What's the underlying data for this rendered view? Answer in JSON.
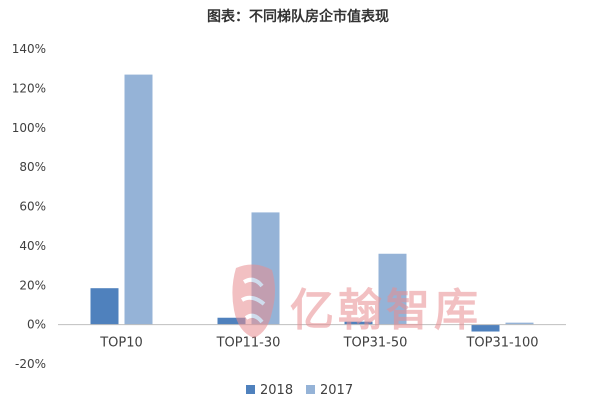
{
  "chart_data": {
    "type": "bar",
    "title": "图表：不同梯队房企市值表现",
    "categories": [
      "TOP10",
      "TOP11-30",
      "TOP31-50",
      "TOP31-100"
    ],
    "series": [
      {
        "name": "2018",
        "color": "#4f81bd",
        "values": [
          18.5,
          3.5,
          1.5,
          -3.5
        ]
      },
      {
        "name": "2017",
        "color": "#95b3d7",
        "values": [
          127,
          57,
          36,
          1
        ]
      }
    ],
    "xlabel": "",
    "ylabel": "",
    "ylim": [
      -20,
      140
    ],
    "yticks": [
      "-20%",
      "0%",
      "20%",
      "40%",
      "60%",
      "80%",
      "100%",
      "120%",
      "140%"
    ],
    "ytick_values": [
      -20,
      0,
      20,
      40,
      60,
      80,
      100,
      120,
      140
    ],
    "legend": "bottom",
    "grid": false
  },
  "watermark": {
    "text": "亿翰智库",
    "seal_icon": "seal-logo-icon"
  }
}
